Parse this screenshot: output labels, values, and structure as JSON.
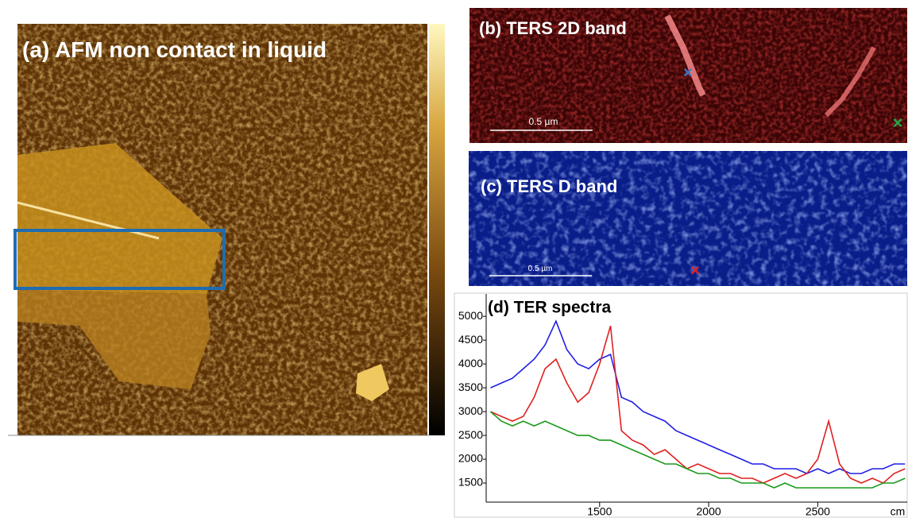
{
  "panels": {
    "a": {
      "label": "(a) AFM non contact in liquid"
    },
    "b": {
      "label": "(b) TERS 2D band",
      "scale_bar": "0.5 µm"
    },
    "c": {
      "label": "(c) TERS D band",
      "scale_bar": "0.5 µm"
    }
  },
  "chart_data": {
    "type": "line",
    "title": "(d) TER spectra",
    "x_label": "cm",
    "x": [
      1000,
      1050,
      1100,
      1150,
      1200,
      1250,
      1300,
      1350,
      1400,
      1450,
      1500,
      1550,
      1600,
      1650,
      1700,
      1750,
      1800,
      1850,
      1900,
      1950,
      2000,
      2050,
      2100,
      2150,
      2200,
      2250,
      2300,
      2350,
      2400,
      2450,
      2500,
      2550,
      2600,
      2650,
      2700,
      2750,
      2800,
      2850,
      2900
    ],
    "series": [
      {
        "color": "#1f1fe6",
        "values": [
          3500,
          3600,
          3700,
          3900,
          4100,
          4400,
          4900,
          4300,
          4000,
          3900,
          4100,
          4200,
          3300,
          3200,
          3000,
          2900,
          2800,
          2600,
          2500,
          2400,
          2300,
          2200,
          2100,
          2000,
          1900,
          1900,
          1800,
          1800,
          1800,
          1700,
          1800,
          1700,
          1800,
          1700,
          1700,
          1800,
          1800,
          1900,
          1900
        ]
      },
      {
        "color": "#e02020",
        "values": [
          3000,
          2900,
          2800,
          2900,
          3300,
          3900,
          4100,
          3600,
          3200,
          3400,
          4000,
          4800,
          2600,
          2400,
          2300,
          2100,
          2200,
          2000,
          1800,
          1900,
          1800,
          1700,
          1700,
          1600,
          1600,
          1500,
          1600,
          1700,
          1600,
          1700,
          2000,
          2800,
          1900,
          1600,
          1500,
          1600,
          1500,
          1700,
          1800
        ]
      },
      {
        "color": "#1a9a1a",
        "values": [
          3000,
          2800,
          2700,
          2800,
          2700,
          2800,
          2700,
          2600,
          2500,
          2500,
          2400,
          2400,
          2300,
          2200,
          2100,
          2000,
          1900,
          1900,
          1800,
          1700,
          1700,
          1600,
          1600,
          1500,
          1500,
          1500,
          1400,
          1500,
          1400,
          1400,
          1400,
          1400,
          1400,
          1400,
          1400,
          1400,
          1500,
          1500,
          1600
        ]
      }
    ],
    "xlim": [
      980,
      2910
    ],
    "xticks": [
      1500,
      2000,
      2500
    ],
    "ylim": [
      1100,
      5470
    ],
    "yticks": [
      1500,
      2000,
      2500,
      3000,
      3500,
      4000,
      4500,
      5000
    ]
  }
}
